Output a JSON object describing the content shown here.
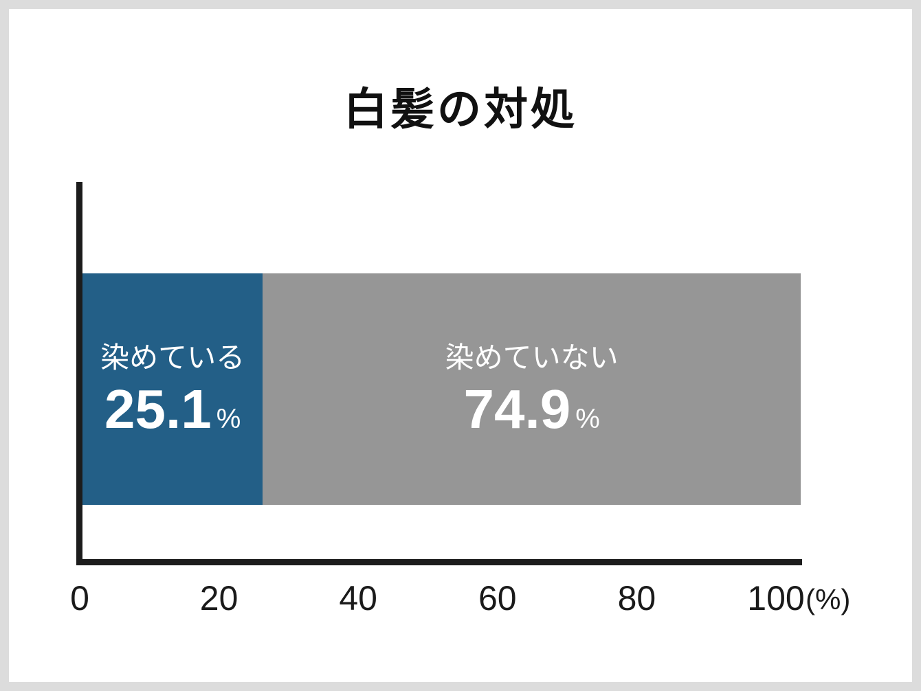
{
  "title": "白髪の対処",
  "chart_data": {
    "type": "bar",
    "orientation": "horizontal_stacked",
    "title": "白髪の対処",
    "categories": [
      "染めている",
      "染めていない"
    ],
    "values": [
      25.1,
      74.9
    ],
    "value_labels": [
      "25.1",
      "74.9"
    ],
    "value_unit": "%",
    "axis_unit_label": "(%)",
    "x_ticks": [
      "0",
      "20",
      "40",
      "60",
      "80",
      "100"
    ],
    "xlim": [
      0,
      100
    ],
    "series_colors": [
      "#235f87",
      "#969696"
    ],
    "bar_text_color": "#ffffff",
    "axis_color": "#1c1c1c",
    "grid": false,
    "legend_position": "none"
  },
  "page": {
    "background_color": "#ffffff",
    "frame_color": "#dcdcdc"
  }
}
